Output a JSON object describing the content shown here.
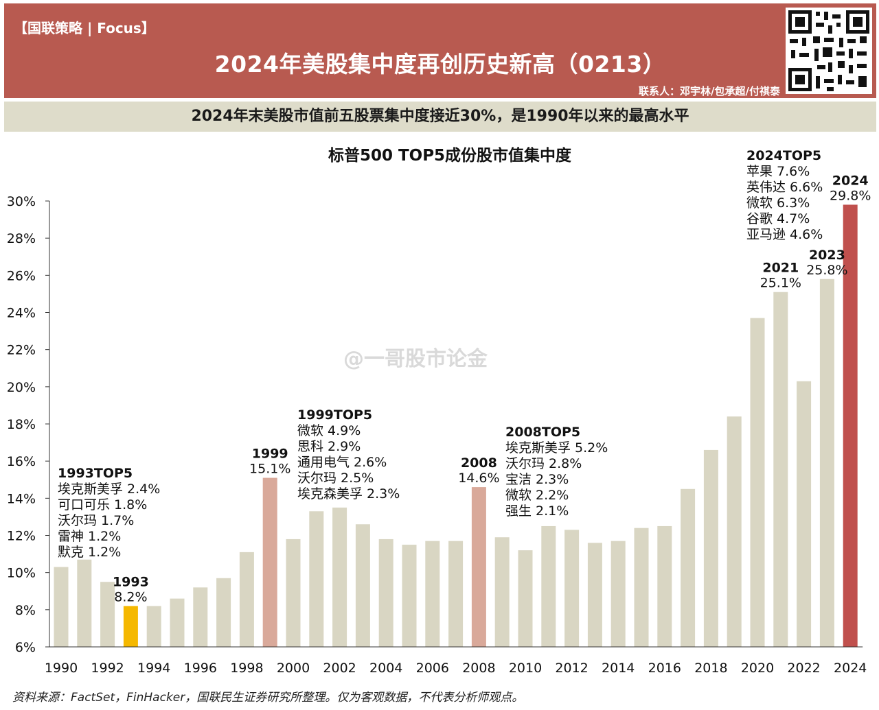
{
  "header": {
    "brand": "【国联策略 | Focus】",
    "title": "2024年美股集中度再创历史新高（0213）",
    "contact": "联系人：邓宇林/包承超/付祺泰"
  },
  "subtitle": "2024年末美股市值前五股票集中度接近30%，是1990年以来的最高水平",
  "watermark": "@一哥股市论金",
  "source": "资料来源：FactSet，FinHacker，国联民生证券研究所整理。仅为客观数据，不代表分析师观点。",
  "chart_data": {
    "type": "bar",
    "title": "标普500 TOP5成份股市值集中度",
    "xlabel": "",
    "ylabel": "",
    "ylim": [
      6,
      30
    ],
    "y_ticks": [
      "6%",
      "8%",
      "10%",
      "12%",
      "14%",
      "16%",
      "18%",
      "20%",
      "22%",
      "24%",
      "26%",
      "28%",
      "30%"
    ],
    "y_tick_values": [
      6,
      8,
      10,
      12,
      14,
      16,
      18,
      20,
      22,
      24,
      26,
      28,
      30
    ],
    "x_tick_labels": [
      "1990",
      "1992",
      "1994",
      "1996",
      "1998",
      "2000",
      "2002",
      "2004",
      "2006",
      "2008",
      "2010",
      "2012",
      "2014",
      "2016",
      "2018",
      "2020",
      "2022",
      "2024"
    ],
    "categories": [
      "1990",
      "1991",
      "1992",
      "1993",
      "1994",
      "1995",
      "1996",
      "1997",
      "1998",
      "1999",
      "2000",
      "2001",
      "2002",
      "2003",
      "2004",
      "2005",
      "2006",
      "2007",
      "2008",
      "2009",
      "2010",
      "2011",
      "2012",
      "2013",
      "2014",
      "2015",
      "2016",
      "2017",
      "2018",
      "2019",
      "2020",
      "2021",
      "2022",
      "2023",
      "2024"
    ],
    "values": [
      10.3,
      10.7,
      9.5,
      8.2,
      8.2,
      8.6,
      9.2,
      9.7,
      11.1,
      15.1,
      11.8,
      13.3,
      13.5,
      12.6,
      11.8,
      11.5,
      11.7,
      11.7,
      14.6,
      11.9,
      11.2,
      12.5,
      12.3,
      11.6,
      11.7,
      12.4,
      12.5,
      14.5,
      16.6,
      18.4,
      23.7,
      25.1,
      20.3,
      25.8,
      29.8
    ],
    "colors": {
      "default": "#d9d6c3",
      "1993": "#f5b800",
      "1999": "#d9a99a",
      "2008": "#d9a99a",
      "2024": "#c0504d"
    },
    "value_labels": [
      {
        "year": "1993",
        "name": "1993",
        "value": "8.2%"
      },
      {
        "year": "1999",
        "name": "1999",
        "value": "15.1%"
      },
      {
        "year": "2008",
        "name": "2008",
        "value": "14.6%"
      },
      {
        "year": "2021",
        "name": "2021",
        "value": "25.1%"
      },
      {
        "year": "2023",
        "name": "2023",
        "value": "25.8%"
      },
      {
        "year": "2024",
        "name": "2024",
        "value": "29.8%"
      }
    ],
    "annotations": [
      {
        "title": "1993TOP5",
        "items": [
          "埃克斯美孚 2.4%",
          "可口可乐 1.8%",
          "沃尔玛 1.7%",
          "雷神 1.2%",
          "默克 1.2%"
        ]
      },
      {
        "title": "1999TOP5",
        "items": [
          "微软 4.9%",
          "思科 2.9%",
          "通用电气 2.6%",
          "沃尔玛 2.5%",
          "埃克森美孚 2.3%"
        ]
      },
      {
        "title": "2008TOP5",
        "items": [
          "埃克斯美孚 5.2%",
          "沃尔玛 2.8%",
          "宝洁 2.3%",
          "微软 2.2%",
          "强生 2.1%"
        ]
      },
      {
        "title": "2024TOP5",
        "items": [
          "苹果 7.6%",
          "英伟达 6.6%",
          "微软 6.3%",
          "谷歌 4.7%",
          "亚马逊 4.6%"
        ]
      }
    ]
  }
}
